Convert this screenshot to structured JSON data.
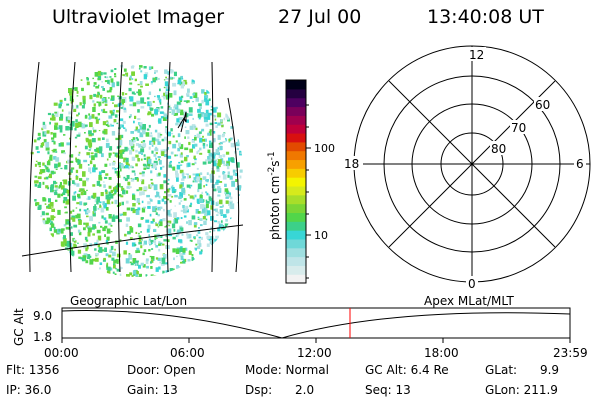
{
  "header": {
    "instrument": "Ultraviolet Imager",
    "date": "27 Jul 00",
    "time": "13:40:08 UT"
  },
  "colorbar": {
    "unit_label": "photon cm-2s-1",
    "tick_100": "100",
    "tick_10": "10",
    "colors": [
      "#f2f2f2",
      "#d8ecec",
      "#bfe5e8",
      "#9fdfe0",
      "#6fd8d8",
      "#38d6d6",
      "#3cd089",
      "#52d64a",
      "#7bd636",
      "#a8de2a",
      "#d6ea1c",
      "#f4f400",
      "#f7cc00",
      "#f7a000",
      "#f07800",
      "#e24a00",
      "#d81010",
      "#c0003a",
      "#a0004e",
      "#7a005a",
      "#4e0060",
      "#240040",
      "#000018"
    ]
  },
  "polar_plot": {
    "mlt_labels": {
      "top": "12",
      "left": "18",
      "right": "6",
      "bottom": "0"
    },
    "lat_labels": [
      "60",
      "70",
      "80"
    ]
  },
  "timeline": {
    "left_caption": "Geographic Lat/Lon",
    "right_caption": "Apex MLat/MLT",
    "axis_label": "GC Alt",
    "y_max": "9.0",
    "y_min": "1.8",
    "x_ticks": [
      "00:00",
      "06:00",
      "12:00",
      "18:00",
      "23:59"
    ],
    "current_time_marker_color": "#ff0000"
  },
  "info": {
    "flt": "Flt: 1356",
    "ip": "IP: 36.0",
    "door": "Door: Open",
    "gain": "Gain: 13",
    "mode": "Mode: Normal",
    "dsp": "Dsp:      2.0",
    "gc_alt": "GC Alt: 6.4 Re",
    "seq": "Seq: 13",
    "glat": "GLat:      9.9",
    "glon": "GLon: 211.9"
  }
}
